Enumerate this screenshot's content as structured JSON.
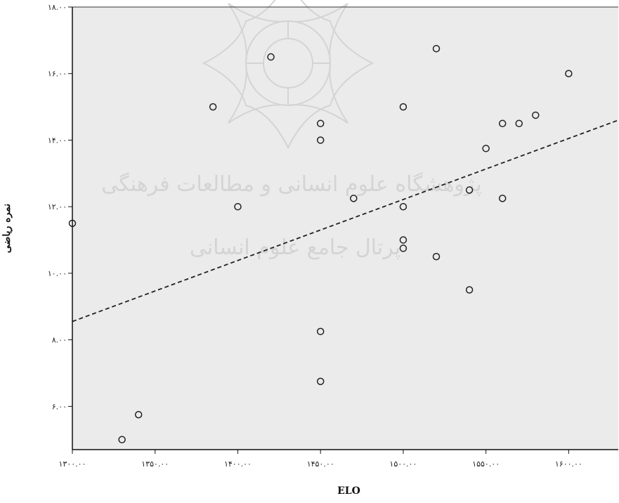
{
  "chart_data": {
    "type": "scatter",
    "title": "",
    "xlabel": "ELO",
    "ylabel": "نمره ریاضی",
    "xlim": [
      1300,
      1630
    ],
    "ylim": [
      4.7,
      18
    ],
    "x_ticks": [
      {
        "value": 1300,
        "label": "۱۳۰۰.۰۰"
      },
      {
        "value": 1350,
        "label": "۱۳۵۰.۰۰"
      },
      {
        "value": 1400,
        "label": "۱۴۰۰.۰۰"
      },
      {
        "value": 1450,
        "label": "۱۴۵۰.۰۰"
      },
      {
        "value": 1500,
        "label": "۱۵۰۰.۰۰"
      },
      {
        "value": 1550,
        "label": "۱۵۵۰.۰۰"
      },
      {
        "value": 1600,
        "label": "۱۶۰۰.۰۰"
      }
    ],
    "y_ticks": [
      {
        "value": 6,
        "label": "۶.۰۰"
      },
      {
        "value": 8,
        "label": "۸.۰۰"
      },
      {
        "value": 10,
        "label": "۱۰.۰۰"
      },
      {
        "value": 12,
        "label": "۱۲.۰۰"
      },
      {
        "value": 14,
        "label": "۱۴.۰۰"
      },
      {
        "value": 16,
        "label": "۱۶.۰۰"
      },
      {
        "value": 18,
        "label": "۱۸.۰۰"
      }
    ],
    "grid": false,
    "background_color": "#ebebeb",
    "marker": "open-circle",
    "points": [
      {
        "x": 1300,
        "y": 11.5
      },
      {
        "x": 1330,
        "y": 5.0
      },
      {
        "x": 1340,
        "y": 5.75
      },
      {
        "x": 1385,
        "y": 15.0
      },
      {
        "x": 1400,
        "y": 12.0
      },
      {
        "x": 1420,
        "y": 16.5
      },
      {
        "x": 1450,
        "y": 14.5
      },
      {
        "x": 1450,
        "y": 14.0
      },
      {
        "x": 1450,
        "y": 8.25
      },
      {
        "x": 1450,
        "y": 6.75
      },
      {
        "x": 1470,
        "y": 12.25
      },
      {
        "x": 1500,
        "y": 15.0
      },
      {
        "x": 1500,
        "y": 12.0
      },
      {
        "x": 1500,
        "y": 11.0
      },
      {
        "x": 1500,
        "y": 10.75
      },
      {
        "x": 1520,
        "y": 16.75
      },
      {
        "x": 1520,
        "y": 10.5
      },
      {
        "x": 1540,
        "y": 12.5
      },
      {
        "x": 1540,
        "y": 9.5
      },
      {
        "x": 1550,
        "y": 13.75
      },
      {
        "x": 1560,
        "y": 14.5
      },
      {
        "x": 1560,
        "y": 12.25
      },
      {
        "x": 1570,
        "y": 14.5
      },
      {
        "x": 1580,
        "y": 14.75
      },
      {
        "x": 1600,
        "y": 16.0
      }
    ],
    "fit_line": {
      "style": "dashed",
      "x": [
        1282,
        1632
      ],
      "y": [
        8.55,
        14.6
      ]
    }
  }
}
